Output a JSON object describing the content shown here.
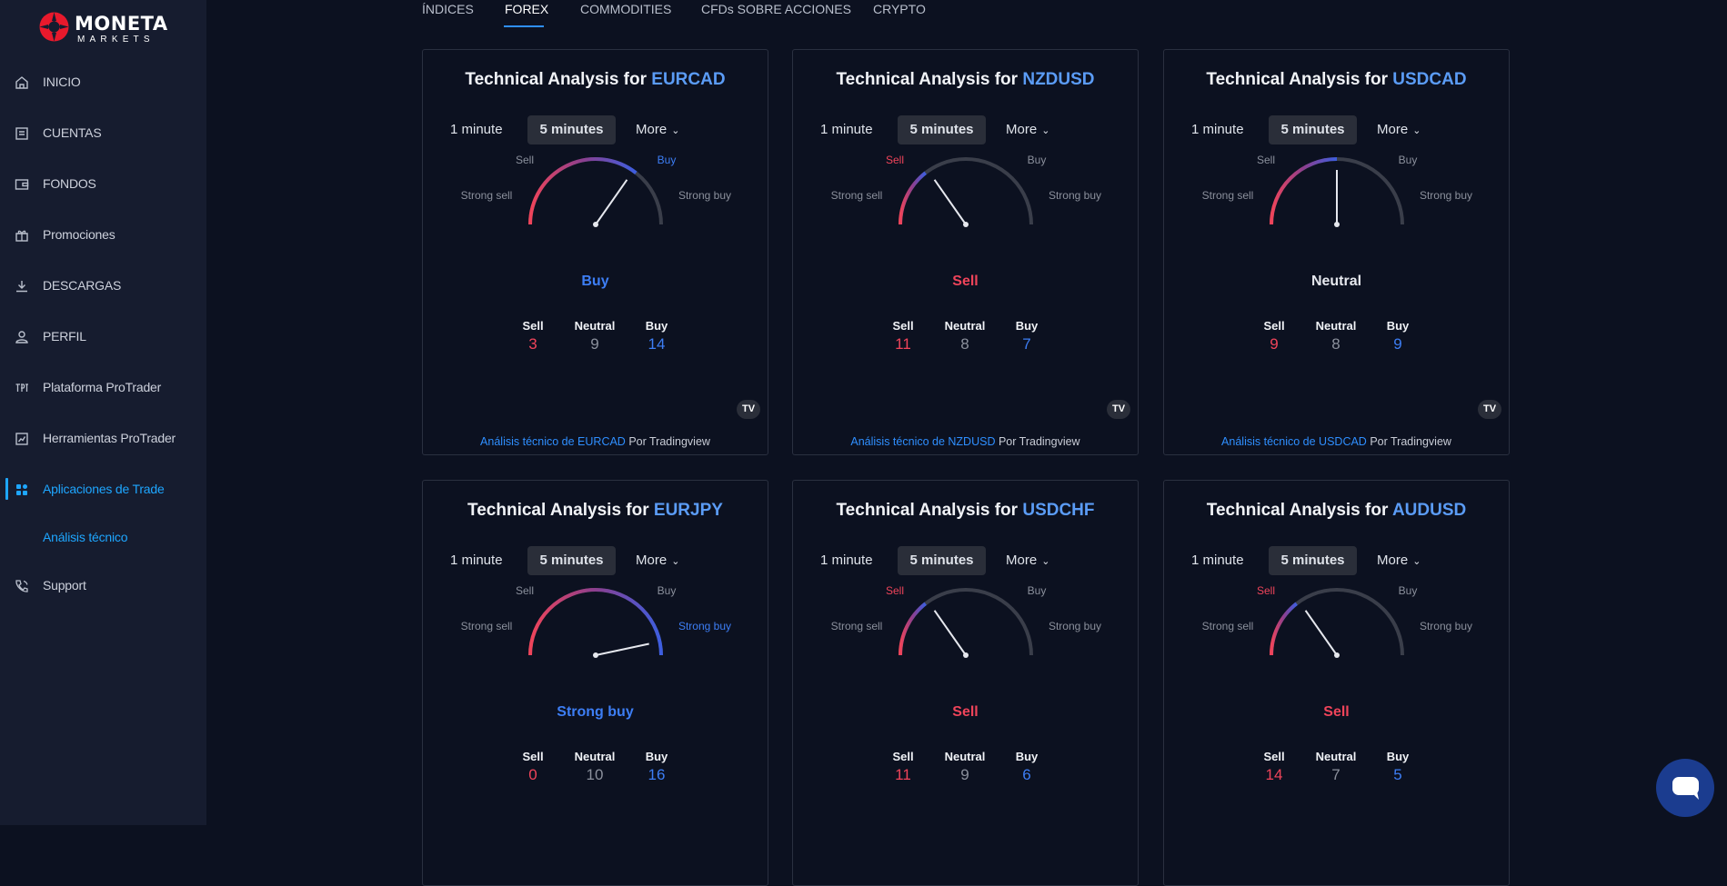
{
  "logo": {
    "brand": "MONETA",
    "sub": "MARKETS"
  },
  "sidebar": {
    "items": [
      {
        "label": "INICIO",
        "icon": "home-icon"
      },
      {
        "label": "CUENTAS",
        "icon": "document-icon"
      },
      {
        "label": "FONDOS",
        "icon": "wallet-icon"
      },
      {
        "label": "Promociones",
        "icon": "gift-icon"
      },
      {
        "label": "DESCARGAS",
        "icon": "download-icon"
      },
      {
        "label": "PERFIL",
        "icon": "user-icon"
      },
      {
        "label": "Plataforma ProTrader",
        "icon": "protrader-icon"
      },
      {
        "label": "Herramientas ProTrader",
        "icon": "chart-icon"
      },
      {
        "label": "Aplicaciones de Trade",
        "icon": "grid-icon",
        "active": true
      },
      {
        "label": "Support",
        "icon": "phone-icon"
      }
    ],
    "subitem": "Análisis técnico",
    "accent": "#1ea6ff"
  },
  "tabs": [
    "ÍNDICES",
    "FOREX",
    "COMMODITIES",
    "CFDs SOBRE ACCIONES",
    "CRYPTO"
  ],
  "active_tab": "FOREX",
  "widget_text": {
    "title_prefix": "Technical Analysis for",
    "interval_1": "1 minute",
    "interval_5": "5 minutes",
    "more": "More",
    "gauge_labels": {
      "strong_sell": "Strong sell",
      "sell": "Sell",
      "neutral": "Neutral",
      "buy": "Buy",
      "strong_buy": "Strong buy"
    },
    "count_headers": {
      "sell": "Sell",
      "neutral": "Neutral",
      "buy": "Buy"
    },
    "badge": "TV",
    "footer_by": " Por Tradingview"
  },
  "colors": {
    "sell": "#f0445a",
    "buy": "#3d7ef5",
    "neutral": "#8b909c",
    "link": "#2f8fff"
  },
  "cards": [
    {
      "symbol": "EURCAD",
      "signal": "buy",
      "summary": "Buy",
      "sell": "3",
      "neutral": "9",
      "buy": "14",
      "link": "Análisis técnico de EURCAD"
    },
    {
      "symbol": "NZDUSD",
      "signal": "sell",
      "summary": "Sell",
      "sell": "11",
      "neutral": "8",
      "buy": "7",
      "link": "Análisis técnico de NZDUSD"
    },
    {
      "symbol": "USDCAD",
      "signal": "neutral",
      "summary": "Neutral",
      "sell": "9",
      "neutral": "8",
      "buy": "9",
      "link": "Análisis técnico de USDCAD"
    },
    {
      "symbol": "EURJPY",
      "signal": "strong-buy",
      "summary": "Strong buy",
      "sell": "0",
      "neutral": "10",
      "buy": "16"
    },
    {
      "symbol": "USDCHF",
      "signal": "sell",
      "summary": "Sell",
      "sell": "11",
      "neutral": "9",
      "buy": "6"
    },
    {
      "symbol": "AUDUSD",
      "signal": "sell",
      "summary": "Sell",
      "sell": "14",
      "neutral": "7",
      "buy": "5"
    }
  ]
}
